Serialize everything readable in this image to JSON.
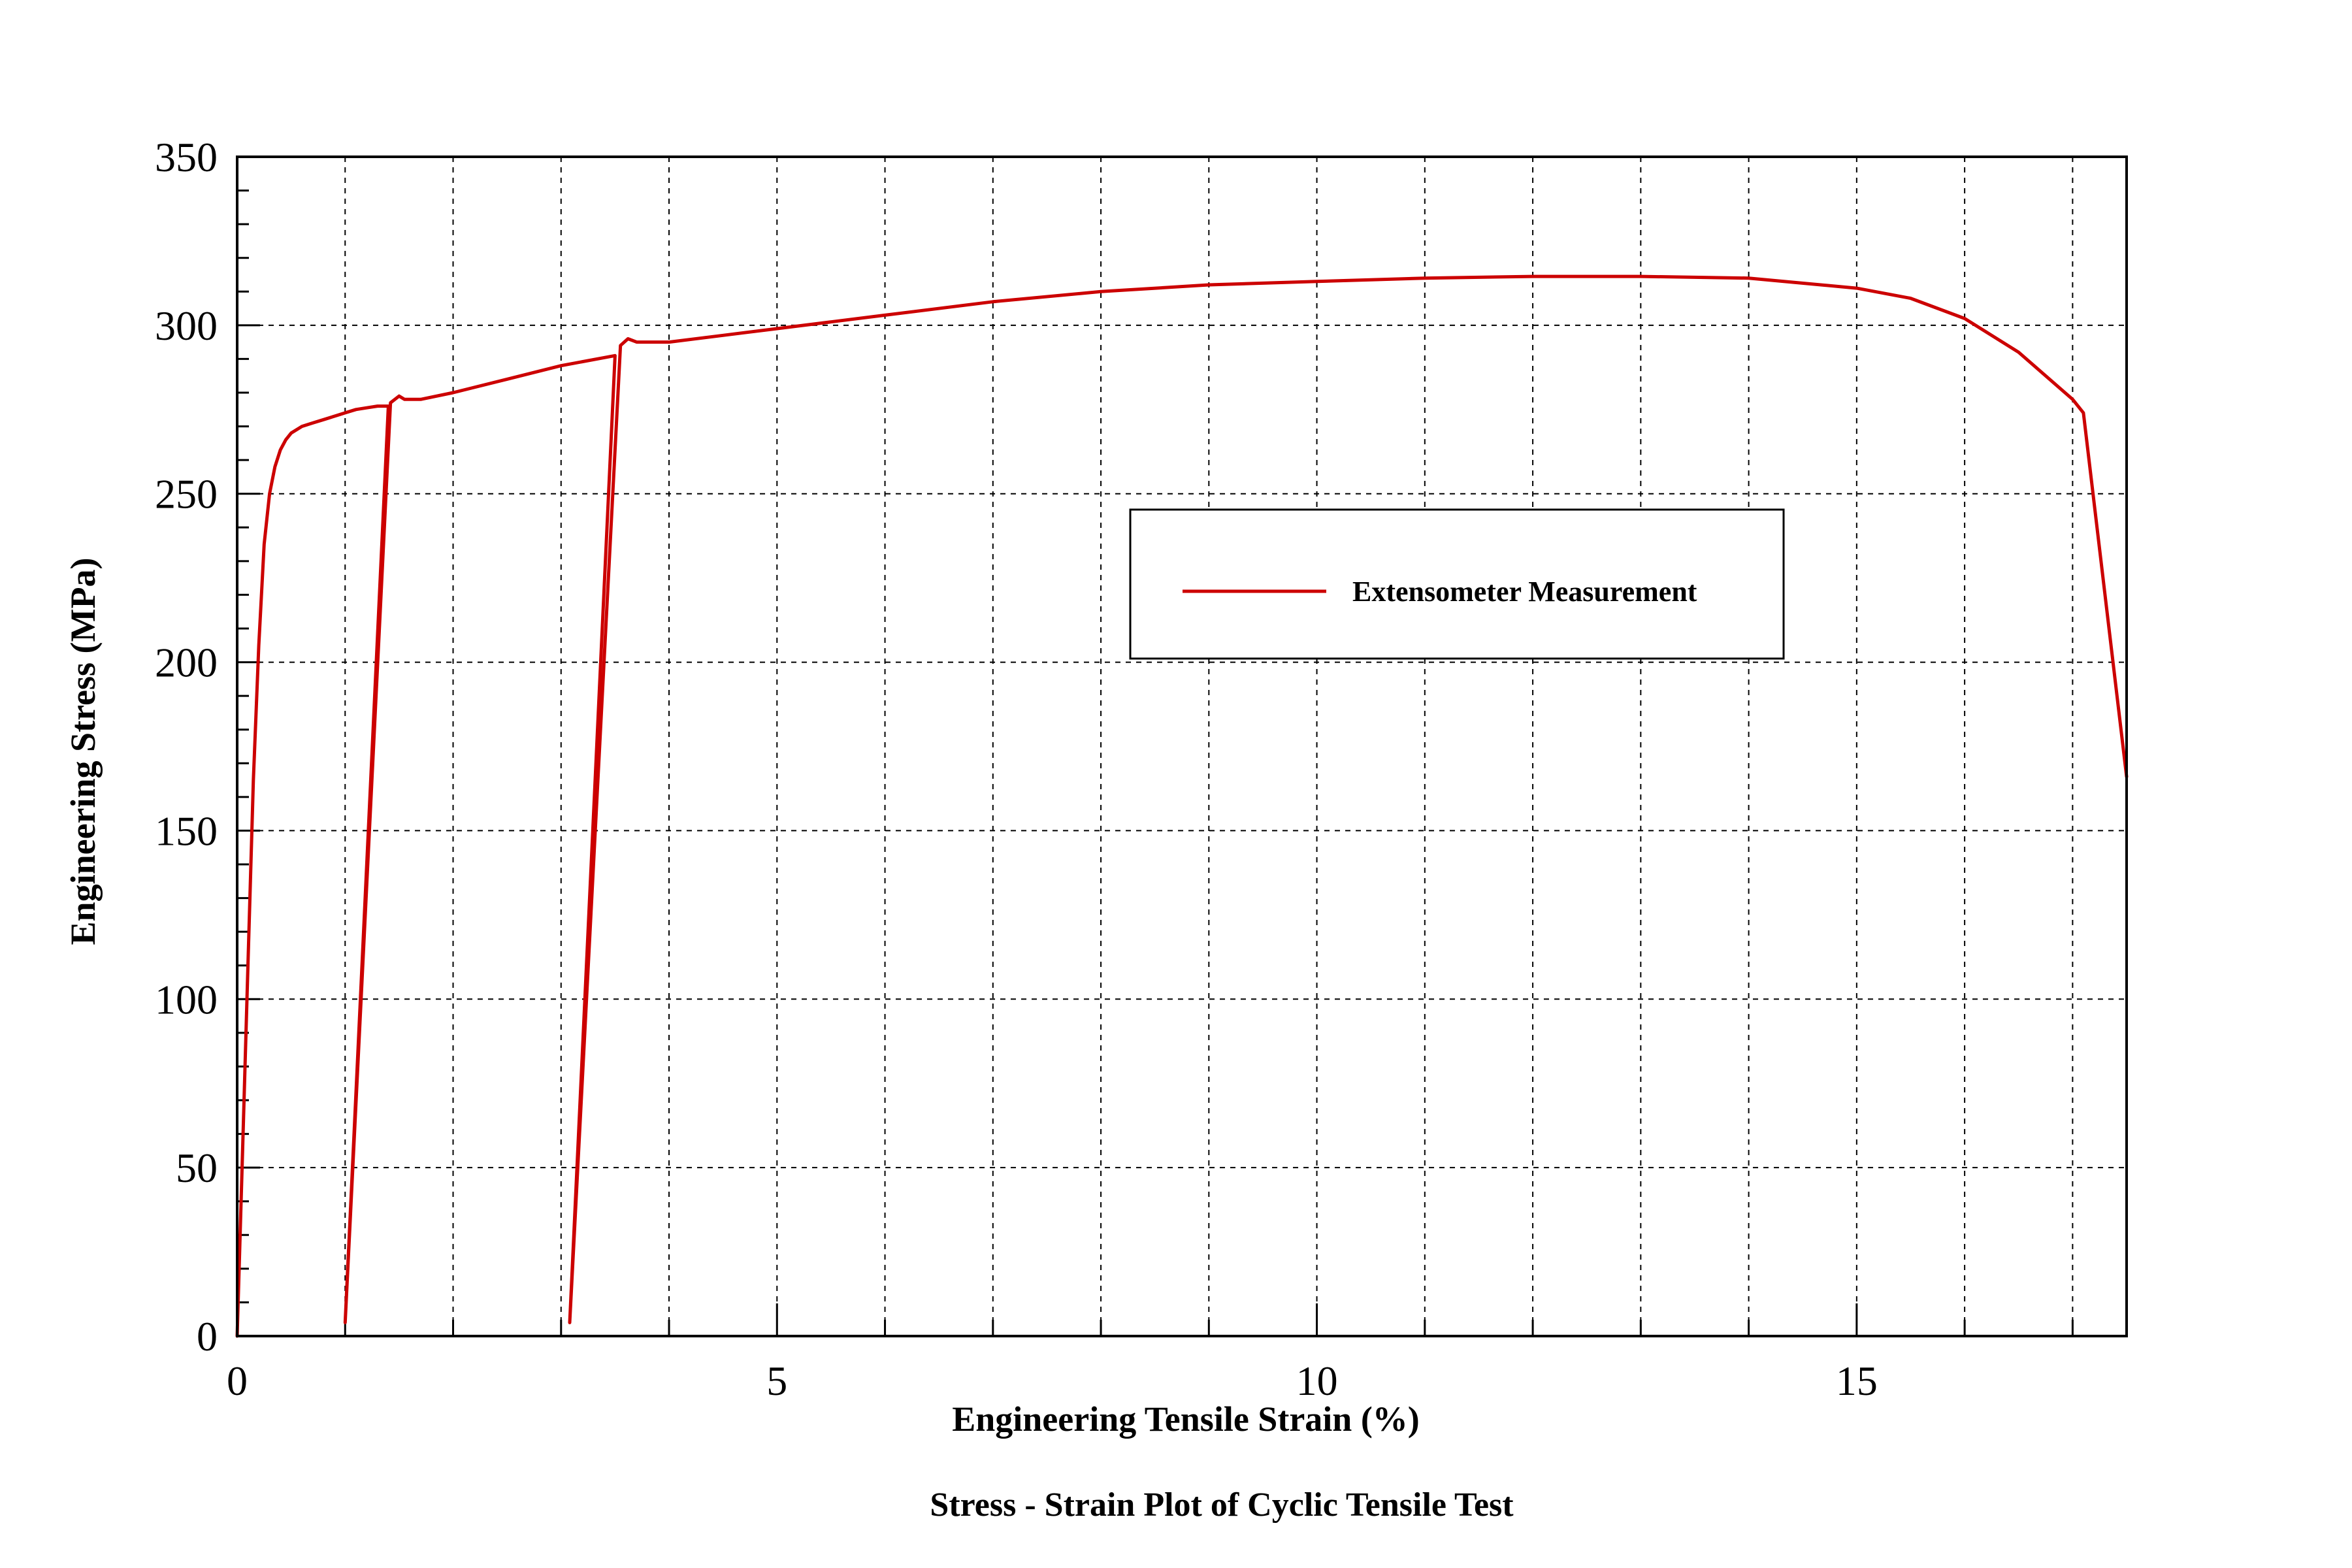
{
  "chart_data": {
    "type": "line",
    "title": "Stress - Strain Plot of Cyclic Tensile Test",
    "xlabel": "Engineering Tensile Strain (%)",
    "ylabel": "Engineering Stress (MPa)",
    "xlim": [
      0,
      17.5
    ],
    "ylim": [
      0,
      350
    ],
    "xticks": [
      0,
      5,
      10,
      15
    ],
    "yticks": [
      0,
      50,
      100,
      150,
      200,
      250,
      300,
      350
    ],
    "grid": true,
    "legend_position": "center-right",
    "series": [
      {
        "name": "Extensometer Measurement",
        "color": "#cc0000",
        "x": [
          0,
          0.05,
          0.1,
          0.15,
          0.2,
          0.25,
          0.3,
          0.35,
          0.4,
          0.45,
          0.5,
          0.55,
          0.6,
          0.7,
          0.8,
          0.9,
          1.0,
          1.1,
          1.2,
          1.3,
          1.4,
          1.0,
          1.42,
          1.5,
          1.55,
          1.7,
          2.0,
          2.5,
          3.0,
          3.5,
          3.08,
          3.55,
          3.62,
          3.7,
          4.0,
          4.5,
          5.0,
          5.5,
          6.0,
          7.0,
          8.0,
          9.0,
          10.0,
          11.0,
          12.0,
          13.0,
          14.0,
          15.0,
          15.5,
          16.0,
          16.5,
          17.0,
          17.1,
          17.5
        ],
        "y": [
          0,
          55,
          110,
          165,
          205,
          235,
          250,
          258,
          263,
          266,
          268,
          269,
          270,
          271,
          272,
          273,
          274,
          275,
          275.5,
          276,
          276,
          4,
          277,
          279,
          278,
          278,
          280,
          284,
          288,
          291,
          4,
          294,
          296,
          295,
          295,
          297,
          299,
          301,
          303,
          307,
          310,
          312,
          313,
          314,
          314.5,
          314.5,
          314,
          311,
          308,
          302,
          292,
          278,
          274,
          166
        ]
      }
    ]
  }
}
